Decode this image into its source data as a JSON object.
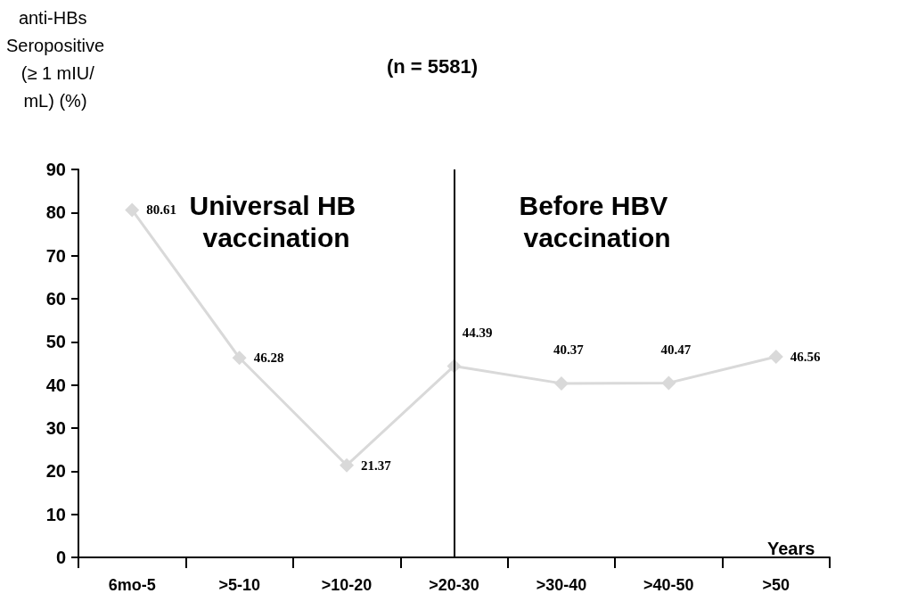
{
  "chart_data": {
    "type": "line",
    "title": "(n = 5581)",
    "ylabel": "anti-HBs Seropositive (≥ 1 mIU/mL) (%)",
    "xlabel": "Years",
    "categories": [
      "6mo-5",
      ">5-10",
      ">10-20",
      ">20-30",
      ">30-40",
      ">40-50",
      ">50"
    ],
    "series": [
      {
        "color": "#d9d9d9",
        "values": [
          80.61,
          46.28,
          21.37,
          44.39,
          40.37,
          40.47,
          46.56
        ]
      }
    ],
    "ylim": [
      0,
      90
    ],
    "yticks": [
      0,
      10,
      20,
      30,
      40,
      50,
      60,
      70,
      80,
      90
    ],
    "data_labels": true,
    "marker": "diamond",
    "line_style": "solid",
    "annotations": [
      "Universal HB vaccination",
      "Before HBV vaccination"
    ]
  }
}
